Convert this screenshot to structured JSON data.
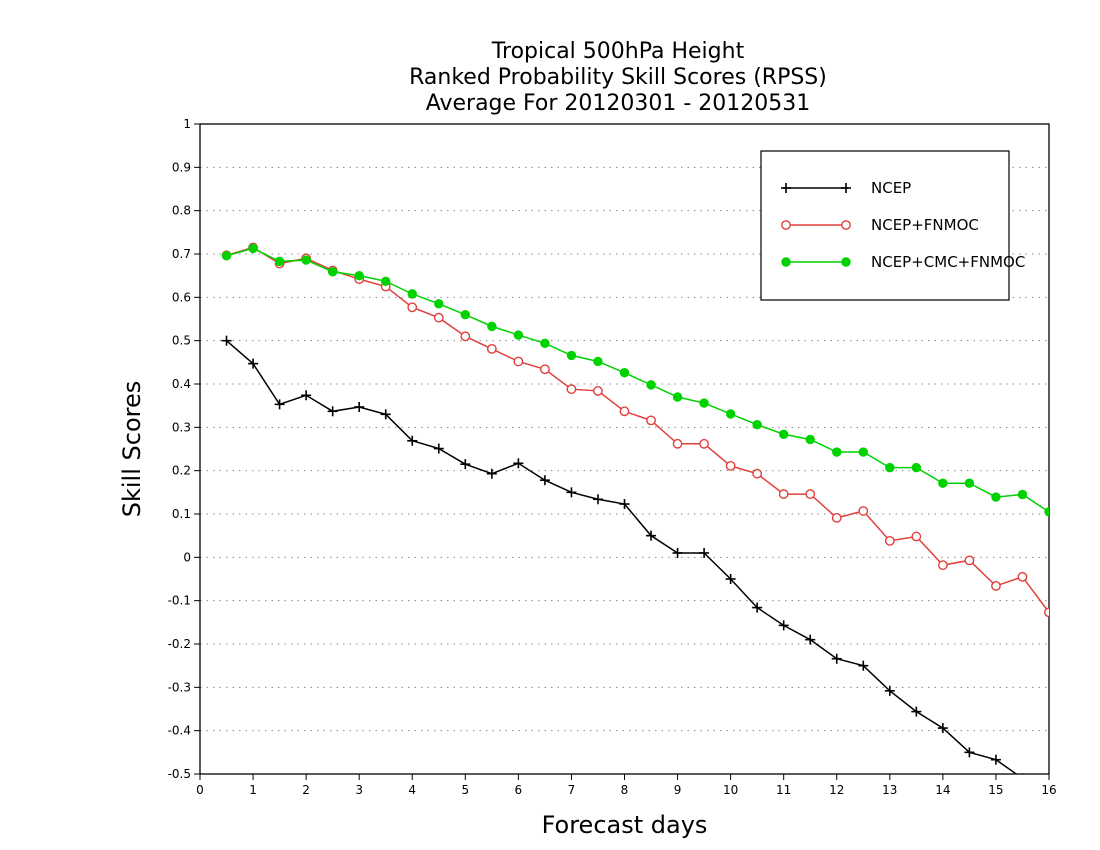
{
  "chart_data": {
    "type": "line",
    "title": [
      "Tropical 500hPa Height",
      "Ranked Probability Skill Scores (RPSS)",
      " Average For 20120301 - 20120531"
    ],
    "xlabel": "Forecast days",
    "ylabel": "Skill Scores",
    "xlim": [
      0,
      16
    ],
    "ylim": [
      -0.5,
      1
    ],
    "xticks": [
      "0",
      "1",
      "2",
      "3",
      "4",
      "5",
      "6",
      "7",
      "8",
      "9",
      "10",
      "11",
      "12",
      "13",
      "14",
      "15",
      "16"
    ],
    "yticks": [
      "-0.5",
      "-0.4",
      "-0.3",
      "-0.2",
      "-0.1",
      "0",
      "0.1",
      "0.2",
      "0.3",
      "0.4",
      "0.5",
      "0.6",
      "0.7",
      "0.8",
      "0.9",
      "1"
    ],
    "grid": "horizontal-dotted",
    "legend_position": "top-right",
    "x": [
      0.5,
      1,
      1.5,
      2,
      2.5,
      3,
      3.5,
      4,
      4.5,
      5,
      5.5,
      6,
      6.5,
      7,
      7.5,
      8,
      8.5,
      9,
      9.5,
      10,
      10.5,
      11,
      11.5,
      12,
      12.5,
      13,
      13.5,
      14,
      14.5,
      15,
      15.5,
      16
    ],
    "series": [
      {
        "name": "NCEP",
        "color": "#000000",
        "marker": "plus",
        "values": [
          0.5,
          0.447,
          0.353,
          0.374,
          0.337,
          0.347,
          0.33,
          0.269,
          0.251,
          0.215,
          0.193,
          0.217,
          0.178,
          0.15,
          0.134,
          0.123,
          0.05,
          0.01,
          0.01,
          -0.05,
          -0.116,
          -0.157,
          -0.19,
          -0.234,
          -0.25,
          -0.308,
          -0.356,
          -0.394,
          -0.45,
          -0.467,
          -0.51,
          -0.53
        ]
      },
      {
        "name": "NCEP+FNMOC",
        "color": "#e0403c",
        "marker": "open-circle",
        "values": [
          0.697,
          0.715,
          0.678,
          0.69,
          0.662,
          0.642,
          0.625,
          0.577,
          0.553,
          0.51,
          0.481,
          0.452,
          0.434,
          0.388,
          0.384,
          0.337,
          0.316,
          0.262,
          0.262,
          0.211,
          0.193,
          0.146,
          0.146,
          0.091,
          0.107,
          0.038,
          0.048,
          -0.018,
          -0.007,
          -0.066,
          -0.045,
          -0.127
        ]
      },
      {
        "name": "NCEP+CMC+FNMOC",
        "color": "#00d200",
        "marker": "filled-circle",
        "values": [
          0.696,
          0.713,
          0.683,
          0.686,
          0.659,
          0.65,
          0.637,
          0.608,
          0.585,
          0.56,
          0.533,
          0.513,
          0.494,
          0.466,
          0.452,
          0.426,
          0.398,
          0.37,
          0.356,
          0.331,
          0.306,
          0.284,
          0.272,
          0.243,
          0.243,
          0.207,
          0.207,
          0.171,
          0.171,
          0.139,
          0.145,
          0.105
        ]
      }
    ]
  }
}
